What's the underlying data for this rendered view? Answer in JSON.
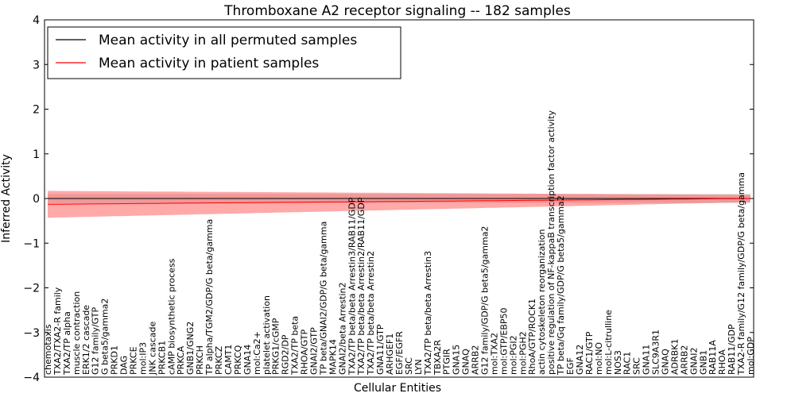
{
  "chart_data": {
    "type": "line",
    "title": "Thromboxane A2 receptor signaling -- 182 samples",
    "xlabel": "Cellular Entities",
    "ylabel": "Inferred Activity",
    "ylim": [
      -4,
      4
    ],
    "yticks": [
      -4,
      -3,
      -2,
      -1,
      0,
      1,
      2,
      3,
      4
    ],
    "legend_position": "top-left",
    "colors": {
      "permuted": "#000000",
      "patient": "#ff0000",
      "patient_band": "#ff7070",
      "permuted_band": "#b0b0b0"
    },
    "series": [
      {
        "name": "Mean activity in all permuted samples",
        "color": "#000000",
        "start": 0.0,
        "end": 0.0,
        "band_start": 0.1,
        "band_end": 0.1
      },
      {
        "name": "Mean activity in patient samples",
        "color": "#ff0000",
        "start": -0.13,
        "end": 0.0,
        "band_start": 0.3,
        "band_end": 0.08
      }
    ],
    "categories": [
      "chemotaxis",
      "TXA2/TXA2-R family",
      "TXA2/TP alpha",
      "muscle contraction",
      "ERK1/2 cascade",
      "G12 family/GTP",
      "G beta5/gamma2",
      "PRKD1",
      "DAG",
      "PRKCE",
      "mol:IP3",
      "JNK cascade",
      "PRKCB1",
      "cAMP biosynthetic process",
      "PRKCA",
      "GNB1/GNG2",
      "PRKCH",
      "TP alpha/TGM2/GDP/G beta/gamma",
      "PRKCZ",
      "CAMT1",
      "PRKCQ",
      "GNA14",
      "mol:Ca2+",
      "platelet activation",
      "PRKG1/cGMP",
      "RGD2/DP",
      "TXA2/TP beta",
      "RHOA/GTP",
      "GNAI2/GTP",
      "TP beta/GNAI2/GDP/G beta/gamma",
      "MAPK14",
      "GNAI2/beta Arrestin2",
      "TXA2/TP beta/beta Arrestin3/RAB11/GDP",
      "TXA2/TP beta/beta Arrestin2/RAB11/GDP",
      "TXA2/TP beta/beta Arrestin2",
      "GNA11/GTP",
      "ARHGEF1",
      "EGF/EGFR",
      "SRC",
      "LYN",
      "TXA2/TP beta/beta Arrestin3",
      "TBXA2R",
      "PTGIR",
      "GNA15",
      "GNAQ",
      "ARRB2",
      "G12 family/GDP/G beta5/gamma2",
      "mol:TXA2",
      "mol:GTP/EBP50",
      "mol:PGI2",
      "mol:PGH2",
      "RhoA/GTP/ROCK1",
      "actin cytoskeleton reorganization",
      "positive regulation of NF-kappaB transcription factor activity",
      "TP beta/Gq family/GDP/G beta5/gamma2",
      "EGF",
      "GNA12",
      "RAC1/GTP",
      "mol:NO",
      "mol:L-citrulline",
      "NOS3",
      "RAC1",
      "SRC",
      "GNA11",
      "SLC9A3R1",
      "GNAQ",
      "ADRBK1",
      "ARRB2",
      "GNAI2",
      "GNB1",
      "RAB11A",
      "RHOA",
      "RAB11/GDP",
      "TXA2-R family/G12 family/GDP/G beta/gamma",
      "mol:GDP"
    ]
  }
}
